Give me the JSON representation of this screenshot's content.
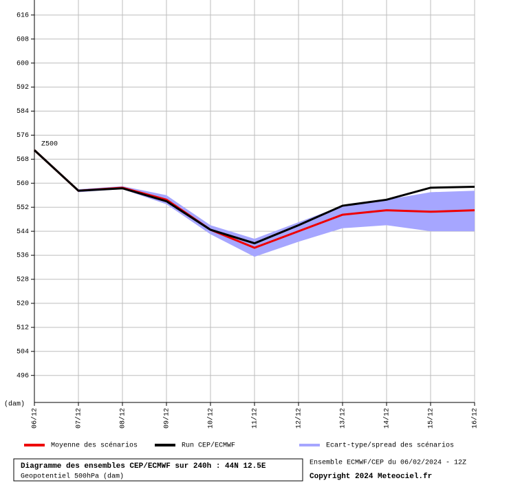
{
  "chart_data": {
    "type": "line",
    "annotation": "Z500",
    "y_unit": "(dam)",
    "categories": [
      "06/12",
      "07/12",
      "08/12",
      "09/12",
      "10/12",
      "11/12",
      "12/12",
      "13/12",
      "14/12",
      "15/12",
      "16/12"
    ],
    "ylim": [
      487,
      621
    ],
    "yticks": [
      496,
      504,
      512,
      520,
      528,
      536,
      544,
      552,
      560,
      568,
      576,
      584,
      592,
      600,
      608,
      616
    ],
    "grid": true,
    "band": {
      "name": "Ecart-type/spread des scénarios",
      "color": "#a6a6ff",
      "upper": [
        571,
        558,
        559,
        556,
        546,
        541.5,
        547,
        552.5,
        554.5,
        557,
        557.5
      ],
      "lower": [
        571,
        557,
        558,
        553,
        543,
        535.5,
        540.5,
        545,
        546,
        544,
        544
      ]
    },
    "series": [
      {
        "name": "Moyenne des scénarios",
        "color": "#ee0000",
        "values": [
          571,
          557.5,
          558.5,
          554.5,
          544.5,
          538.5,
          544,
          549.5,
          551,
          550.5,
          551
        ]
      },
      {
        "name": "Run CEP/ECMWF",
        "color": "#000000",
        "values": [
          571,
          557.5,
          558.3,
          554,
          544.5,
          540,
          546,
          552.5,
          554.5,
          558.5,
          558.8
        ]
      }
    ],
    "footer": {
      "title": "Diagramme des ensembles CEP/ECMWF sur 240h : 44N 12.5E",
      "subtitle": "Geopotentiel 500hPa (dam)",
      "run": "Ensemble ECMWF/CEP du 06/02/2024 - 12Z",
      "copyright": "Copyright 2024 Meteociel.fr"
    }
  }
}
